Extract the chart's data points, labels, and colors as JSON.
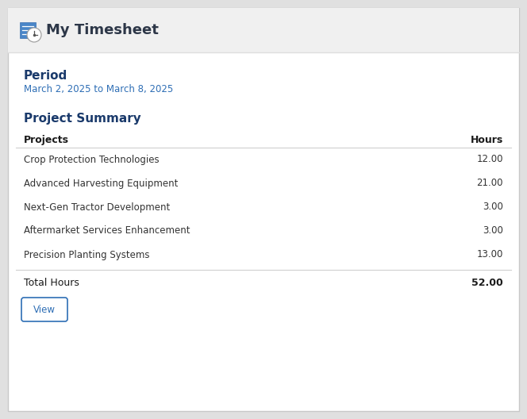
{
  "fig_bg": "#e0e0e0",
  "card_bg": "#ffffff",
  "card_border": "#c8c8c8",
  "header_bg": "#f0f0f0",
  "header_sep": "#dedede",
  "header_title": "My Timesheet",
  "header_title_color": "#2d3748",
  "header_title_fontsize": 13,
  "period_label": "Period",
  "period_label_color": "#1a3a6b",
  "period_label_fontsize": 11,
  "period_dates": "March 2, 2025 to March 8, 2025",
  "period_dates_color": "#2e6eb5",
  "period_dates_fontsize": 8.5,
  "section_title": "Project Summary",
  "section_title_color": "#1a3a6b",
  "section_title_fontsize": 11,
  "col_projects": "Projects",
  "col_hours": "Hours",
  "col_fontsize": 9,
  "col_color": "#1a1a1a",
  "projects": [
    "Crop Protection Technologies",
    "Advanced Harvesting Equipment",
    "Next-Gen Tractor Development",
    "Aftermarket Services Enhancement",
    "Precision Planting Systems"
  ],
  "hours": [
    "12.00",
    "21.00",
    "3.00",
    "3.00",
    "13.00"
  ],
  "row_fontsize": 8.5,
  "row_color": "#333333",
  "total_label": "Total Hours",
  "total_hours": "52.00",
  "total_fontsize": 9,
  "total_color": "#1a1a1a",
  "sep_color": "#d0d0d0",
  "btn_label": "View",
  "btn_text_color": "#2e6eb5",
  "btn_border_color": "#2e6eb5",
  "icon_rect_color": "#4a86c8",
  "icon_rect_dark": "#3a70b0"
}
